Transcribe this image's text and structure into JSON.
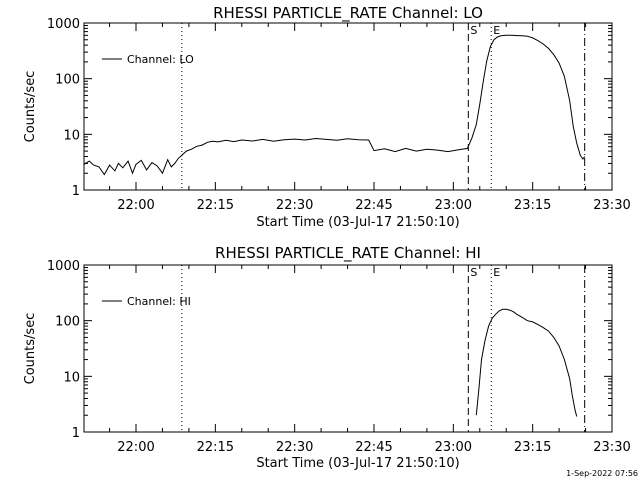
{
  "footer": "1-Sep-2022 07:56",
  "chart_data": [
    {
      "type": "line",
      "title": "RHESSI PARTICLE_RATE Channel: LO",
      "xlabel": "Start Time (03-Jul-17 21:50:10)",
      "ylabel": "Counts/sec",
      "yscale": "log",
      "xlim": [
        "21:50:10",
        "23:30:00"
      ],
      "ylim": [
        1,
        1000
      ],
      "xticks": [
        "22:00",
        "22:15",
        "22:30",
        "22:45",
        "23:00",
        "23:15",
        "23:30"
      ],
      "yticks": [
        "1",
        "10",
        "100",
        "1000"
      ],
      "legend": "top-left",
      "markers": [
        {
          "label": "",
          "time": "22:08:40",
          "style": "dotted"
        },
        {
          "label": "S",
          "time": "23:02:50",
          "style": "dashed"
        },
        {
          "label": "E",
          "time": "23:07:10",
          "style": "dotted"
        },
        {
          "label": "",
          "time": "23:24:50",
          "style": "dashdot"
        }
      ],
      "series": [
        {
          "name": "Channel: LO",
          "x": [
            "21:50:10",
            "21:51:10",
            "21:52:00",
            "21:53:00",
            "21:54:00",
            "21:55:00",
            "21:56:00",
            "21:56:40",
            "21:57:30",
            "21:58:30",
            "21:59:20",
            "22:00:00",
            "22:01:00",
            "22:02:00",
            "22:03:00",
            "22:04:00",
            "22:05:00",
            "22:06:00",
            "22:06:40",
            "22:07:20",
            "22:08:00",
            "22:08:40",
            "22:09:30",
            "22:10:30",
            "22:11:30",
            "22:12:30",
            "22:13:30",
            "22:14:30",
            "22:15:30",
            "22:17:00",
            "22:18:30",
            "22:20:00",
            "22:22:00",
            "22:24:00",
            "22:26:00",
            "22:28:00",
            "22:30:00",
            "22:32:00",
            "22:34:00",
            "22:36:00",
            "22:38:00",
            "22:40:00",
            "22:42:00",
            "22:44:00",
            "22:45:00",
            "22:47:00",
            "22:49:00",
            "22:51:00",
            "22:53:00",
            "22:55:00",
            "22:57:00",
            "22:59:00",
            "23:01:00",
            "23:02:40",
            "23:03:30",
            "23:04:20",
            "23:05:00",
            "23:05:40",
            "23:06:20",
            "23:07:00",
            "23:07:40",
            "23:08:20",
            "23:09:00",
            "23:10:00",
            "23:11:00",
            "23:12:00",
            "23:13:00",
            "23:14:00",
            "23:15:00",
            "23:16:00",
            "23:17:00",
            "23:18:00",
            "23:19:00",
            "23:20:00",
            "23:21:00",
            "23:22:00",
            "23:22:40",
            "23:23:20",
            "23:24:00",
            "23:24:30",
            "23:24:50"
          ],
          "y": [
            2.9,
            3.3,
            2.8,
            2.6,
            1.9,
            2.8,
            2.2,
            3.0,
            2.5,
            3.3,
            2.0,
            2.9,
            3.4,
            2.3,
            3.1,
            2.7,
            2.0,
            3.5,
            2.6,
            3.0,
            3.7,
            4.2,
            5.0,
            5.4,
            6.1,
            6.4,
            7.2,
            7.5,
            7.3,
            7.8,
            7.4,
            7.9,
            7.6,
            8.1,
            7.5,
            8.0,
            8.2,
            7.9,
            8.4,
            8.1,
            7.8,
            8.3,
            8.0,
            7.9,
            5.1,
            5.5,
            4.9,
            5.6,
            5.0,
            5.4,
            5.2,
            4.9,
            5.3,
            5.6,
            8.5,
            15,
            35,
            90,
            210,
            380,
            500,
            560,
            590,
            600,
            600,
            595,
            590,
            580,
            540,
            480,
            420,
            350,
            270,
            190,
            110,
            40,
            14,
            7,
            4.2,
            3.6,
            4.0
          ]
        }
      ]
    },
    {
      "type": "line",
      "title": "RHESSI PARTICLE_RATE Channel: HI",
      "xlabel": "Start Time (03-Jul-17 21:50:10)",
      "ylabel": "Counts/sec",
      "yscale": "log",
      "xlim": [
        "21:50:10",
        "23:30:00"
      ],
      "ylim": [
        1,
        1000
      ],
      "xticks": [
        "22:00",
        "22:15",
        "22:30",
        "22:45",
        "23:00",
        "23:15",
        "23:30"
      ],
      "yticks": [
        "1",
        "10",
        "100",
        "1000"
      ],
      "legend": "top-left",
      "markers": [
        {
          "label": "",
          "time": "22:08:40",
          "style": "dotted"
        },
        {
          "label": "S",
          "time": "23:02:50",
          "style": "dashed"
        },
        {
          "label": "E",
          "time": "23:07:10",
          "style": "dotted"
        },
        {
          "label": "",
          "time": "23:24:50",
          "style": "dashdot"
        }
      ],
      "series": [
        {
          "name": "Channel: HI",
          "x": [
            "23:04:20",
            "23:04:50",
            "23:05:20",
            "23:06:00",
            "23:06:40",
            "23:07:20",
            "23:08:00",
            "23:08:40",
            "23:09:20",
            "23:10:00",
            "23:10:40",
            "23:11:20",
            "23:12:00",
            "23:13:00",
            "23:14:00",
            "23:15:00",
            "23:16:00",
            "23:17:00",
            "23:18:00",
            "23:19:00",
            "23:20:00",
            "23:21:00",
            "23:22:00",
            "23:22:30",
            "23:23:00",
            "23:23:20"
          ],
          "y": [
            2.0,
            6,
            20,
            45,
            80,
            110,
            130,
            150,
            160,
            160,
            155,
            145,
            130,
            115,
            100,
            95,
            85,
            75,
            65,
            50,
            35,
            20,
            9,
            4.5,
            2.5,
            1.9
          ]
        }
      ]
    }
  ]
}
